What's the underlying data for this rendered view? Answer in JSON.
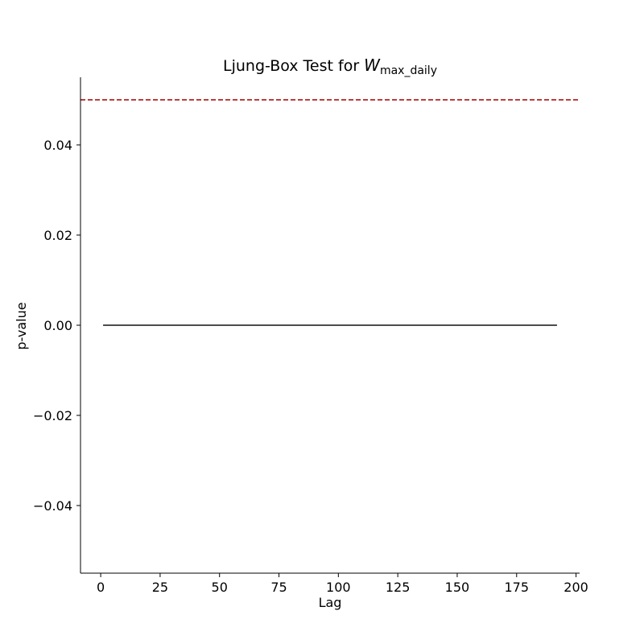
{
  "chart_data": {
    "type": "line",
    "title": {
      "prefix": "Ljung-Box Test for ",
      "symbol": "W",
      "subscript": "max_daily"
    },
    "xlabel": "Lag",
    "ylabel": "p-value",
    "xlim": [
      -8.5,
      201.5
    ],
    "ylim": [
      -0.055,
      0.055
    ],
    "x_ticks": [
      0,
      25,
      50,
      75,
      100,
      125,
      150,
      175,
      200
    ],
    "x_tick_labels": [
      "0",
      "25",
      "50",
      "75",
      "100",
      "125",
      "150",
      "175",
      "200"
    ],
    "y_ticks": [
      -0.04,
      -0.02,
      0.0,
      0.02,
      0.04
    ],
    "y_tick_labels": [
      "−0.04",
      "−0.02",
      "0.00",
      "0.02",
      "0.04"
    ],
    "grid": false,
    "series": [
      {
        "x": [
          1,
          192
        ],
        "y": [
          0.0,
          0.0
        ],
        "color": "#333333"
      }
    ],
    "reference_lines": [
      {
        "y": 0.05,
        "style": "dashed",
        "color": "#b22222"
      }
    ]
  }
}
